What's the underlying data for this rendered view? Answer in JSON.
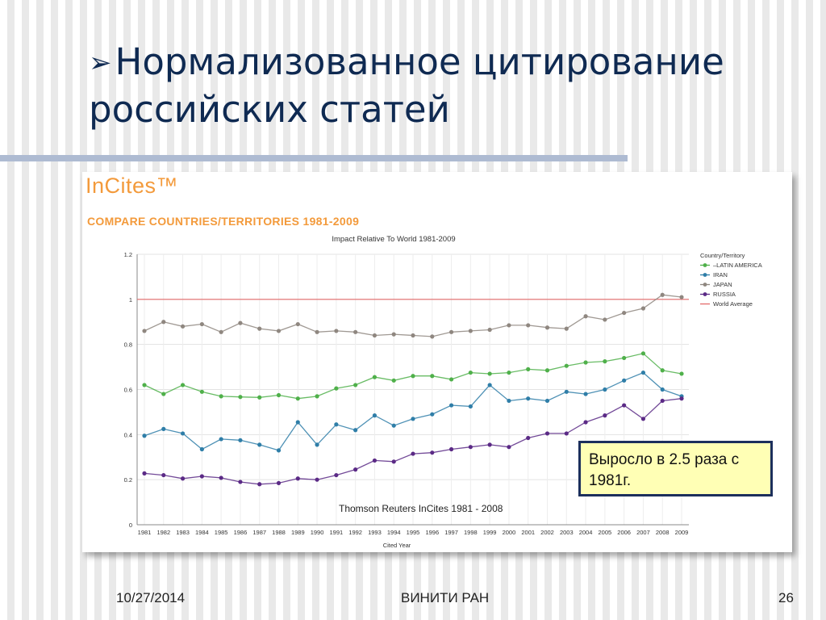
{
  "slide": {
    "bullet": "➢",
    "title_line1": "Нормализованное цитирование",
    "title_line2": "российских статей"
  },
  "panel": {
    "brand": "InCites™",
    "subtitle": "COMPARE COUNTRIES/TERRITORIES 1981-2009"
  },
  "source_note": "Thomson Reuters InCites 1981 - 2008",
  "callout": {
    "text": "Выросло в 2.5 раза с 1981г."
  },
  "footer": {
    "date": "10/27/2014",
    "center": "ВИНИТИ РАН",
    "page": "26"
  },
  "colors": {
    "latin_america": "#4fb04a",
    "iran": "#2f7ea8",
    "japan": "#8f8780",
    "russia": "#5b2a86",
    "world": "#e36a6a",
    "brand": "#f39a3b"
  },
  "chart_data": {
    "type": "line",
    "title": "Impact Relative To World 1981-2009",
    "xlabel": "Cited Year",
    "ylabel": "",
    "ylim": [
      0,
      1.2
    ],
    "yticks": [
      0,
      0.2,
      0.4,
      0.6,
      0.8,
      1,
      1.2
    ],
    "grid": true,
    "legend_title": "Country/Territory",
    "legend_position": "right",
    "categories": [
      "1981",
      "1982",
      "1983",
      "1984",
      "1985",
      "1986",
      "1987",
      "1988",
      "1989",
      "1990",
      "1991",
      "1992",
      "1993",
      "1994",
      "1995",
      "1996",
      "1997",
      "1998",
      "1999",
      "2000",
      "2001",
      "2002",
      "2003",
      "2004",
      "2005",
      "2006",
      "2007",
      "2008",
      "2009"
    ],
    "series": [
      {
        "name": "–LATIN AMERICA",
        "color_key": "latin_america",
        "values": [
          0.62,
          0.58,
          0.62,
          0.59,
          0.57,
          0.567,
          0.565,
          0.575,
          0.56,
          0.57,
          0.605,
          0.62,
          0.655,
          0.64,
          0.66,
          0.66,
          0.645,
          0.675,
          0.67,
          0.675,
          0.69,
          0.685,
          0.705,
          0.72,
          0.725,
          0.74,
          0.76,
          0.685,
          0.67
        ]
      },
      {
        "name": "IRAN",
        "color_key": "iran",
        "values": [
          0.395,
          0.425,
          0.405,
          0.335,
          0.38,
          0.375,
          0.355,
          0.33,
          0.455,
          0.355,
          0.445,
          0.42,
          0.485,
          0.44,
          0.47,
          0.49,
          0.53,
          0.525,
          0.62,
          0.55,
          0.56,
          0.55,
          0.59,
          0.58,
          0.6,
          0.64,
          0.675,
          0.6,
          0.57
        ]
      },
      {
        "name": "JAPAN",
        "color_key": "japan",
        "values": [
          0.86,
          0.9,
          0.88,
          0.89,
          0.855,
          0.895,
          0.87,
          0.86,
          0.89,
          0.855,
          0.86,
          0.855,
          0.84,
          0.845,
          0.84,
          0.835,
          0.855,
          0.86,
          0.865,
          0.885,
          0.885,
          0.875,
          0.87,
          0.925,
          0.91,
          0.94,
          0.96,
          1.02,
          1.01
        ]
      },
      {
        "name": "RUSSIA",
        "color_key": "russia",
        "values": [
          0.228,
          0.22,
          0.205,
          0.215,
          0.208,
          0.19,
          0.18,
          0.185,
          0.205,
          0.2,
          0.22,
          0.245,
          0.285,
          0.28,
          0.315,
          0.32,
          0.335,
          0.345,
          0.355,
          0.345,
          0.385,
          0.405,
          0.405,
          0.455,
          0.485,
          0.53,
          0.47,
          0.55,
          0.56
        ]
      }
    ],
    "reference_line": {
      "name": "World Average",
      "value": 1,
      "color_key": "world"
    }
  }
}
